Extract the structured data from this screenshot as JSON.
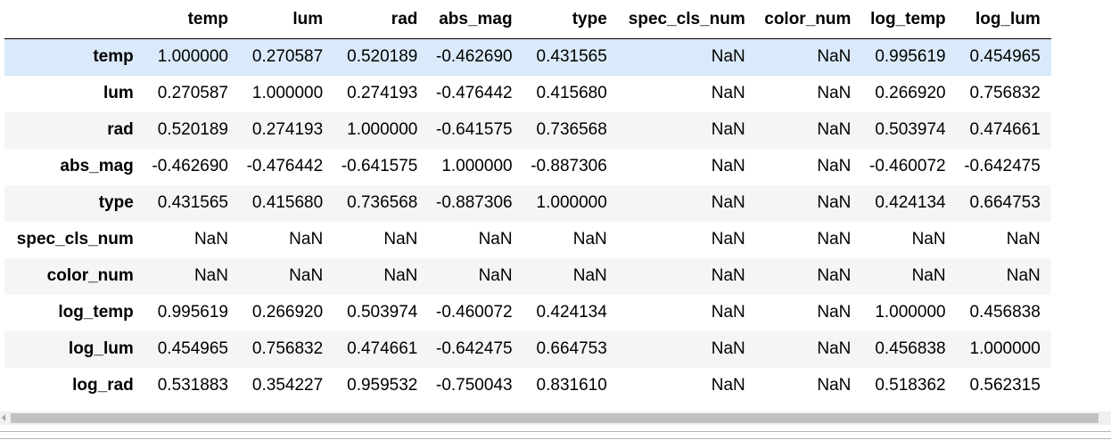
{
  "columns": [
    "temp",
    "lum",
    "rad",
    "abs_mag",
    "type",
    "spec_cls_num",
    "color_num",
    "log_temp",
    "log_lum"
  ],
  "rows": [
    {
      "index": "temp",
      "values": [
        "1.000000",
        "0.270587",
        "0.520189",
        "-0.462690",
        "0.431565",
        "NaN",
        "NaN",
        "0.995619",
        "0.454965"
      ]
    },
    {
      "index": "lum",
      "values": [
        "0.270587",
        "1.000000",
        "0.274193",
        "-0.476442",
        "0.415680",
        "NaN",
        "NaN",
        "0.266920",
        "0.756832"
      ]
    },
    {
      "index": "rad",
      "values": [
        "0.520189",
        "0.274193",
        "1.000000",
        "-0.641575",
        "0.736568",
        "NaN",
        "NaN",
        "0.503974",
        "0.474661"
      ]
    },
    {
      "index": "abs_mag",
      "values": [
        "-0.462690",
        "-0.476442",
        "-0.641575",
        "1.000000",
        "-0.887306",
        "NaN",
        "NaN",
        "-0.460072",
        "-0.642475"
      ]
    },
    {
      "index": "type",
      "values": [
        "0.431565",
        "0.415680",
        "0.736568",
        "-0.887306",
        "1.000000",
        "NaN",
        "NaN",
        "0.424134",
        "0.664753"
      ]
    },
    {
      "index": "spec_cls_num",
      "values": [
        "NaN",
        "NaN",
        "NaN",
        "NaN",
        "NaN",
        "NaN",
        "NaN",
        "NaN",
        "NaN"
      ]
    },
    {
      "index": "color_num",
      "values": [
        "NaN",
        "NaN",
        "NaN",
        "NaN",
        "NaN",
        "NaN",
        "NaN",
        "NaN",
        "NaN"
      ]
    },
    {
      "index": "log_temp",
      "values": [
        "0.995619",
        "0.266920",
        "0.503974",
        "-0.460072",
        "0.424134",
        "NaN",
        "NaN",
        "1.000000",
        "0.456838"
      ]
    },
    {
      "index": "log_lum",
      "values": [
        "0.454965",
        "0.756832",
        "0.474661",
        "-0.642475",
        "0.664753",
        "NaN",
        "NaN",
        "0.456838",
        "1.000000"
      ]
    },
    {
      "index": "log_rad",
      "values": [
        "0.531883",
        "0.354227",
        "0.959532",
        "-0.750043",
        "0.831610",
        "NaN",
        "NaN",
        "0.518362",
        "0.562315"
      ]
    }
  ],
  "colors": {
    "hover_row": "#dbeafa",
    "stripe": "#f5f5f5",
    "scrollbar_thumb": "#c1c1c1"
  }
}
